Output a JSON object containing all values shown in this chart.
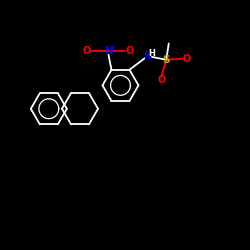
{
  "background_color": "#000000",
  "bond_color": "#ffffff",
  "figsize": [
    2.5,
    2.5
  ],
  "dpi": 100,
  "ring_s": 0.072,
  "colors": {
    "O": "#ff0000",
    "N": "#0000ff",
    "S": "#ccaa00",
    "H": "#ffffff",
    "bond": "#ffffff"
  }
}
